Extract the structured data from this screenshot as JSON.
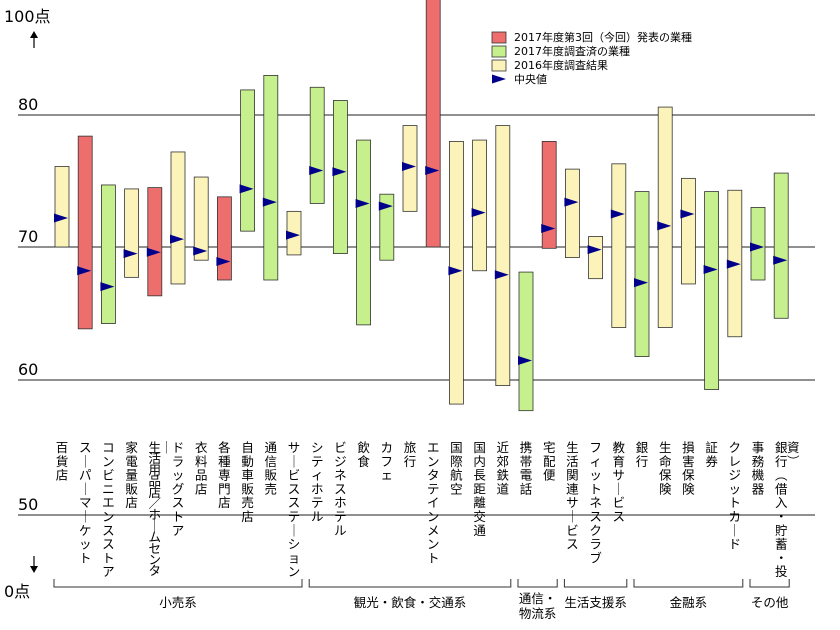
{
  "chart_data": {
    "type": "floating-bar",
    "y_axis": {
      "top_label": "100点",
      "bottom_label": "0点",
      "tick_labels": [
        "80",
        "70",
        "60",
        "50"
      ],
      "ticks": [
        80,
        70,
        60,
        50
      ]
    },
    "legend": [
      {
        "label": "2017年度第3回（今回）発表の業種",
        "color": "#ee6e6e",
        "kind": "box"
      },
      {
        "label": "2017年度調査済の業種",
        "color": "#c6ef8e",
        "kind": "box"
      },
      {
        "label": "2016年度調査結果",
        "color": "#fbf3ba",
        "kind": "box"
      },
      {
        "label": "中央値",
        "color": "#00008b",
        "kind": "marker"
      }
    ],
    "colors": {
      "current": "#ee6e6e",
      "surveyed": "#c6ef8e",
      "prev": "#fbf3ba",
      "median": "#00008b"
    },
    "categories": [
      {
        "label": "百貨店",
        "status": "prev",
        "min": 70.0,
        "max": 76.1,
        "median": 72.2
      },
      {
        "label": "スーパーマーケット",
        "status": "current",
        "min": 63.8,
        "max": 78.4,
        "median": 68.2
      },
      {
        "label": "コンビニエンスストア",
        "status": "surveyed",
        "min": 64.2,
        "max": 74.7,
        "median": 67.0
      },
      {
        "label": "家電量販店",
        "status": "prev",
        "min": 67.7,
        "max": 74.4,
        "median": 69.5
      },
      {
        "label": "生活用品店／ホームセンター",
        "status": "current",
        "min": 66.3,
        "max": 74.5,
        "median": 69.6
      },
      {
        "label": "ドラッグストア",
        "status": "prev",
        "min": 67.2,
        "max": 77.2,
        "median": 70.6
      },
      {
        "label": "衣料品店",
        "status": "prev",
        "min": 69.0,
        "max": 75.3,
        "median": 69.7
      },
      {
        "label": "各種専門店",
        "status": "current",
        "min": 67.5,
        "max": 73.8,
        "median": 68.9
      },
      {
        "label": "自動車販売店",
        "status": "surveyed",
        "min": 71.2,
        "max": 81.9,
        "median": 74.4
      },
      {
        "label": "通信販売",
        "status": "surveyed",
        "min": 67.5,
        "max": 83.0,
        "median": 73.4
      },
      {
        "label": "サービスステーション",
        "status": "prev",
        "min": 69.4,
        "max": 72.7,
        "median": 70.9
      },
      {
        "label": "シティホテル",
        "status": "surveyed",
        "min": 73.3,
        "max": 82.1,
        "median": 75.8
      },
      {
        "label": "ビジネスホテル",
        "status": "surveyed",
        "min": 69.5,
        "max": 81.1,
        "median": 75.7
      },
      {
        "label": "飲食",
        "status": "surveyed",
        "min": 64.1,
        "max": 78.1,
        "median": 73.3
      },
      {
        "label": "カフェ",
        "status": "surveyed",
        "min": 69.0,
        "max": 74.0,
        "median": 73.1
      },
      {
        "label": "旅行",
        "status": "prev",
        "min": 72.7,
        "max": 79.2,
        "median": 76.1
      },
      {
        "label": "エンタテインメント",
        "status": "current",
        "min": 70.0,
        "max": 98.5,
        "median": 75.8
      },
      {
        "label": "国際航空",
        "status": "prev",
        "min": 58.1,
        "max": 78.0,
        "median": 68.2
      },
      {
        "label": "国内長距離交通",
        "status": "prev",
        "min": 68.2,
        "max": 78.1,
        "median": 72.6
      },
      {
        "label": "近郊鉄道",
        "status": "prev",
        "min": 59.5,
        "max": 79.2,
        "median": 67.9
      },
      {
        "label": "携帯電話",
        "status": "surveyed",
        "min": 57.6,
        "max": 68.1,
        "median": 61.4
      },
      {
        "label": "宅配便",
        "status": "current",
        "min": 69.9,
        "max": 78.0,
        "median": 71.4
      },
      {
        "label": "生活関連サービス",
        "status": "prev",
        "min": 69.2,
        "max": 75.9,
        "median": 73.4
      },
      {
        "label": "フィットネスクラブ",
        "status": "prev",
        "min": 67.6,
        "max": 70.8,
        "median": 69.8
      },
      {
        "label": "教育サービス",
        "status": "prev",
        "min": 63.9,
        "max": 76.3,
        "median": 72.5
      },
      {
        "label": "銀行",
        "status": "surveyed",
        "min": 61.7,
        "max": 74.2,
        "median": 67.3
      },
      {
        "label": "生命保険",
        "status": "prev",
        "min": 63.9,
        "max": 80.6,
        "median": 71.6
      },
      {
        "label": "損害保険",
        "status": "prev",
        "min": 67.2,
        "max": 75.2,
        "median": 72.5
      },
      {
        "label": "証券",
        "status": "surveyed",
        "min": 59.2,
        "max": 74.2,
        "median": 68.3
      },
      {
        "label": "クレジットカード",
        "status": "prev",
        "min": 63.2,
        "max": 74.3,
        "median": 68.7
      },
      {
        "label": "事務機器",
        "status": "surveyed",
        "min": 67.5,
        "max": 73.0,
        "median": 70.0
      },
      {
        "label": "銀行（借入・貯蓄・投資）",
        "status": "surveyed",
        "min": 64.6,
        "max": 75.6,
        "median": 69.0
      }
    ],
    "groups": [
      {
        "label": "小売系",
        "from": 0,
        "to": 10
      },
      {
        "label": "観光・飲食・交通系",
        "from": 11,
        "to": 19
      },
      {
        "label": "通信・物流系",
        "from": 20,
        "to": 21
      },
      {
        "label": "生活支援系",
        "from": 22,
        "to": 24
      },
      {
        "label": "金融系",
        "from": 25,
        "to": 29
      },
      {
        "label": "その他",
        "from": 30,
        "to": 31
      }
    ]
  }
}
